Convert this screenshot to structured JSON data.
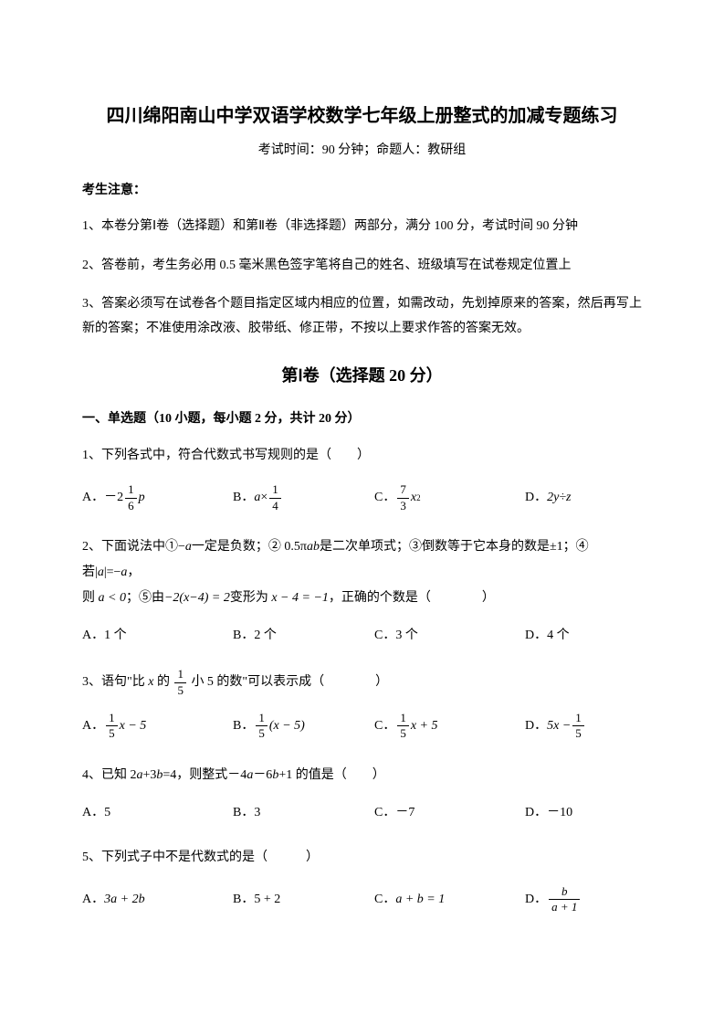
{
  "title": "四川绵阳南山中学双语学校数学七年级上册整式的加减专题练习",
  "subtitle": "考试时间：90 分钟；命题人：教研组",
  "notice_heading": "考生注意：",
  "notices": [
    "1、本卷分第Ⅰ卷（选择题）和第Ⅱ卷（非选择题）两部分，满分 100 分，考试时间 90 分钟",
    "2、答卷前，考生务必用 0.5 毫米黑色签字笔将自己的姓名、班级填写在试卷规定位置上",
    "3、答案必须写在试卷各个题目指定区域内相应的位置，如需改动，先划掉原来的答案，然后再写上新的答案；不准使用涂改液、胶带纸、修正带，不按以上要求作答的答案无效。"
  ],
  "section_title": "第Ⅰ卷（选择题   20 分）",
  "subsection_heading": "一、单选题（10 小题，每小题 2 分，共计 20 分）",
  "q1": {
    "stem": "1、下列各式中，符合代数式书写规则的是（　　）",
    "a_prefix": "A．",
    "a_neg": "－2",
    "a_num": "1",
    "a_den": "6",
    "a_var": "p",
    "b_prefix": "B．",
    "b_text1": "a",
    "b_text2": "×",
    "b_num": "1",
    "b_den": "4",
    "c_prefix": "C．",
    "c_num": "7",
    "c_den": "3",
    "c_var": "x",
    "c_exp": "2",
    "d_prefix": "D．",
    "d_text": "2y÷z"
  },
  "q2": {
    "stem_p1": "2、下面说法中①−",
    "stem_var_a": "a",
    "stem_p2": "一定是负数；② 0.5π",
    "stem_var_ab": "ab",
    "stem_p3": "是二次单项式；③倒数等于它本身的数是±1；④若|",
    "stem_var_a2": "a",
    "stem_p4": "|=−",
    "stem_var_a3": "a",
    "stem_p5": "，",
    "stem_line2_p1": "则",
    "stem_line2_expr1": " a < 0",
    "stem_line2_p2": "；⑤由",
    "stem_line2_expr2": "−2(x−4) = 2",
    "stem_line2_p3": "变形为",
    "stem_line2_expr3": " x − 4 = −1",
    "stem_line2_p4": "，正确的个数是（　　　　）",
    "a": "A．1 个",
    "b": "B．2 个",
    "c": "C．3 个",
    "d": "D．4 个"
  },
  "q3": {
    "stem_p1": "3、语句\"比 ",
    "stem_var": "x",
    "stem_p2": " 的",
    "stem_num": "1",
    "stem_den": "5",
    "stem_p3": "小 5 的数\"可以表示成（　　　　）",
    "a_prefix": "A．",
    "a_num": "1",
    "a_den": "5",
    "a_tail": "x − 5",
    "b_prefix": "B．",
    "b_num": "1",
    "b_den": "5",
    "b_tail": "(x − 5)",
    "c_prefix": "C．",
    "c_num": "1",
    "c_den": "5",
    "c_tail": "x + 5",
    "d_prefix": "D．",
    "d_lead": "5x − ",
    "d_num": "1",
    "d_den": "5"
  },
  "q4": {
    "stem_p1": "4、已知 2",
    "stem_var_a": "a",
    "stem_p2": "+3",
    "stem_var_b": "b",
    "stem_p3": "=4，则整式－4",
    "stem_var_a2": "a",
    "stem_p4": "－6",
    "stem_var_b2": "b",
    "stem_p5": "+1 的值是（　　）",
    "a": "A．5",
    "b": "B．3",
    "c": "C．－7",
    "d": "D．－10"
  },
  "q5": {
    "stem": "5、下列式子中不是代数式的是（　　　）",
    "a_prefix": "A．",
    "a_text": "3a + 2b",
    "b_prefix": "B．",
    "b_text": "5 + 2",
    "c_prefix": "C．",
    "c_text": "a + b = 1",
    "d_prefix": "D．",
    "d_num": "b",
    "d_den": "a + 1"
  },
  "colors": {
    "text": "#000000",
    "background": "#ffffff"
  },
  "fonts": {
    "title_size": 20,
    "body_size": 14,
    "section_title_size": 18
  }
}
